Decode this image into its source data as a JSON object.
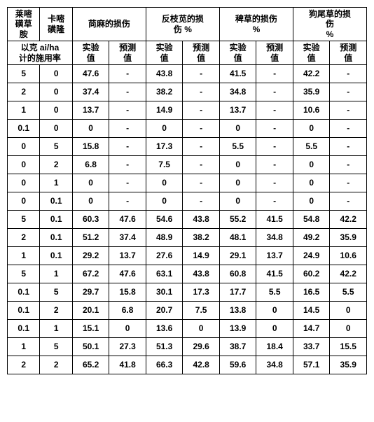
{
  "header": {
    "c0": "莱嘧\n磺草\n胺",
    "c1": "卡嘧\n磺隆",
    "g1": "苘麻的损伤",
    "g2": "反枝苋的损\n伤    %",
    "g3": "稗草的损伤\n%",
    "g4": "狗尾草的损\n伤\n%"
  },
  "sub": {
    "rate": "以克 ai/ha\n计的施用率",
    "exp": "实验\n值",
    "pred": "预测\n值"
  },
  "rows": [
    [
      "5",
      "0",
      "47.6",
      "-",
      "43.8",
      "-",
      "41.5",
      "-",
      "42.2",
      "-"
    ],
    [
      "2",
      "0",
      "37.4",
      "-",
      "38.2",
      "-",
      "34.8",
      "-",
      "35.9",
      "-"
    ],
    [
      "1",
      "0",
      "13.7",
      "-",
      "14.9",
      "-",
      "13.7",
      "-",
      "10.6",
      "-"
    ],
    [
      "0.1",
      "0",
      "0",
      "-",
      "0",
      "-",
      "0",
      "-",
      "0",
      "-"
    ],
    [
      "0",
      "5",
      "15.8",
      "-",
      "17.3",
      "-",
      "5.5",
      "-",
      "5.5",
      "-"
    ],
    [
      "0",
      "2",
      "6.8",
      "-",
      "7.5",
      "-",
      "0",
      "-",
      "0",
      "-"
    ],
    [
      "0",
      "1",
      "0",
      "-",
      "0",
      "-",
      "0",
      "-",
      "0",
      "-"
    ],
    [
      "0",
      "0.1",
      "0",
      "-",
      "0",
      "-",
      "0",
      "-",
      "0",
      "-"
    ],
    [
      "5",
      "0.1",
      "60.3",
      "47.6",
      "54.6",
      "43.8",
      "55.2",
      "41.5",
      "54.8",
      "42.2"
    ],
    [
      "2",
      "0.1",
      "51.2",
      "37.4",
      "48.9",
      "38.2",
      "48.1",
      "34.8",
      "49.2",
      "35.9"
    ],
    [
      "1",
      "0.1",
      "29.2",
      "13.7",
      "27.6",
      "14.9",
      "29.1",
      "13.7",
      "24.9",
      "10.6"
    ],
    [
      "5",
      "1",
      "67.2",
      "47.6",
      "63.1",
      "43.8",
      "60.8",
      "41.5",
      "60.2",
      "42.2"
    ],
    [
      "0.1",
      "5",
      "29.7",
      "15.8",
      "30.1",
      "17.3",
      "17.7",
      "5.5",
      "16.5",
      "5.5"
    ],
    [
      "0.1",
      "2",
      "20.1",
      "6.8",
      "20.7",
      "7.5",
      "13.8",
      "0",
      "14.5",
      "0"
    ],
    [
      "0.1",
      "1",
      "15.1",
      "0",
      "13.6",
      "0",
      "13.9",
      "0",
      "14.7",
      "0"
    ],
    [
      "1",
      "5",
      "50.1",
      "27.3",
      "51.3",
      "29.6",
      "38.7",
      "18.4",
      "33.7",
      "15.5"
    ],
    [
      "2",
      "2",
      "65.2",
      "41.8",
      "66.3",
      "42.8",
      "59.6",
      "34.8",
      "57.1",
      "35.9"
    ]
  ]
}
